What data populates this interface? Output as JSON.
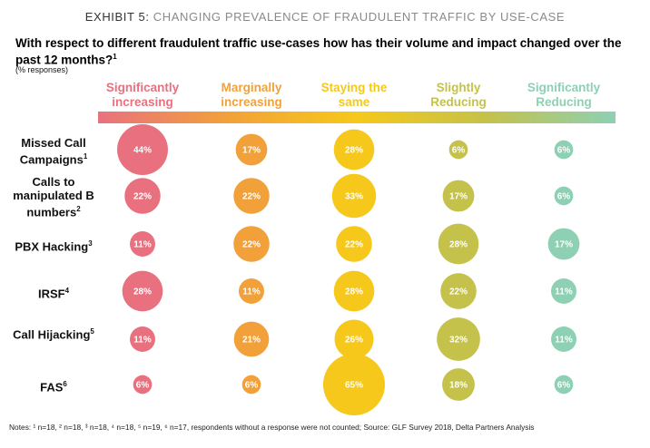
{
  "exhibit": {
    "lead": "EXHIBIT 5:",
    "rest": " CHANGING PREVALENCE OF FRAUDULENT TRAFFIC BY USE-CASE"
  },
  "question": {
    "text": "With respect to different fraudulent traffic use-cases how has their volume and impact changed over the past 12 months?",
    "sup": "1"
  },
  "subnote": "(% responses)",
  "notes": "Notes: ¹ n=18, ² n=18, ³ n=18, ⁴ n=18, ⁵ n=19, ⁶ n=17, respondents without a response were not counted; Source: GLF Survey 2018, Delta Partners Analysis",
  "colors": {
    "significantly_increasing": "#e9717f",
    "marginally_increasing": "#f2a13a",
    "staying_the_same": "#f6c81b",
    "slightly_reducing": "#c4c24a",
    "significantly_reducing": "#8ed0b4"
  },
  "chart_data": {
    "type": "bubble-matrix",
    "columns": [
      {
        "label": "Significantly\nincreasing",
        "color": "#e9717f"
      },
      {
        "label": "Marginally\nincreasing",
        "color": "#f2a13a"
      },
      {
        "label": "Staying the\nsame",
        "color": "#f6c81b"
      },
      {
        "label": "Slightly\nReducing",
        "color": "#c4c24a"
      },
      {
        "label": "Significantly\nReducing",
        "color": "#8ed0b4"
      }
    ],
    "rows": [
      {
        "label": "Missed Call Campaigns",
        "sup": "1",
        "values": [
          44,
          17,
          28,
          6,
          6
        ]
      },
      {
        "label": "Calls to manipulated B numbers",
        "sup": "2",
        "values": [
          22,
          22,
          33,
          17,
          6
        ]
      },
      {
        "label": "PBX Hacking",
        "sup": "3",
        "values": [
          11,
          22,
          22,
          28,
          17
        ]
      },
      {
        "label": "IRSF",
        "sup": "4",
        "values": [
          28,
          11,
          28,
          22,
          11
        ]
      },
      {
        "label": "Call Hijacking",
        "sup": "5",
        "values": [
          11,
          21,
          26,
          32,
          11
        ]
      },
      {
        "label": "FAS",
        "sup": "6",
        "values": [
          6,
          6,
          65,
          18,
          6
        ]
      }
    ],
    "value_suffix": "%"
  }
}
